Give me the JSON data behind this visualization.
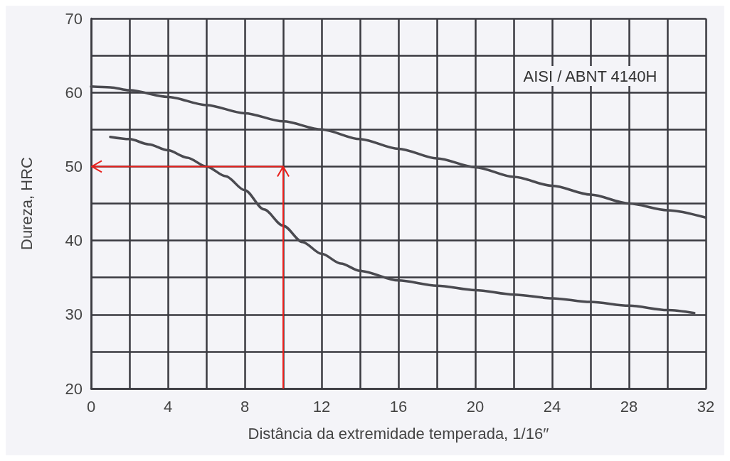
{
  "chart_data": {
    "type": "line",
    "xlabel": "Distância da extremidade temperada, 1/16′′",
    "ylabel": "Dureza, HRC",
    "annotations": [
      "AISI / ABNT 4140H"
    ],
    "series": [
      {
        "color": "#4a4a50",
        "x": [
          0,
          1,
          2,
          4,
          6,
          8,
          10,
          12,
          14,
          16,
          18,
          20,
          22,
          24,
          26,
          28,
          30,
          32
        ],
        "values": [
          60.8,
          60.7,
          60.3,
          59.4,
          58.3,
          57.2,
          56.1,
          55,
          53.7,
          52.4,
          51.1,
          49.9,
          48.6,
          47.4,
          46.2,
          45,
          44.1,
          43.1
        ]
      },
      {
        "color": "#4a4a50",
        "x": [
          1,
          2,
          3,
          4,
          5,
          6,
          7,
          8,
          9,
          10,
          11,
          12,
          13,
          14,
          16,
          18,
          20,
          22,
          24,
          26,
          28,
          30,
          31.4
        ],
        "values": [
          54,
          53.7,
          53,
          52.2,
          51.2,
          50,
          48.7,
          46.8,
          44.2,
          42,
          39.8,
          38.2,
          36.9,
          35.9,
          34.6,
          33.9,
          33.3,
          32.7,
          32.2,
          31.7,
          31.2,
          30.6,
          30.2
        ]
      }
    ],
    "xlim": [
      0,
      32
    ],
    "xticks": [
      0,
      {
        "value": 2,
        "label": null
      },
      4,
      {
        "value": 6,
        "label": null
      },
      8,
      {
        "value": 10,
        "label": null
      },
      12,
      {
        "value": 14,
        "label": null
      },
      16,
      {
        "value": 18,
        "label": null
      },
      20,
      {
        "value": 22,
        "label": null
      },
      24,
      {
        "value": 26,
        "label": null
      },
      28,
      {
        "value": 30,
        "label": null
      },
      32
    ],
    "ylim": [
      20,
      70
    ],
    "yticks": [
      20,
      {
        "value": 25,
        "label": null
      },
      30,
      {
        "value": 35,
        "label": null
      },
      40,
      {
        "value": 45,
        "label": null
      },
      50,
      {
        "value": 55,
        "label": null
      },
      60,
      {
        "value": 65,
        "label": null
      },
      70
    ],
    "grid": true
  }
}
